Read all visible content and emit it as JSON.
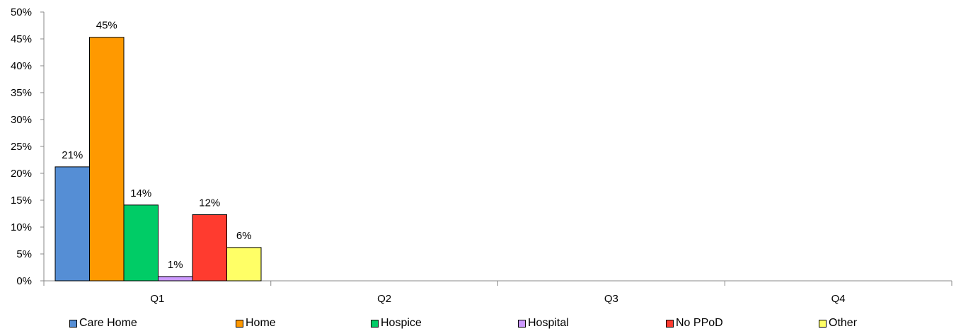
{
  "chart_data": {
    "type": "bar",
    "categories": [
      "Q1",
      "Q2",
      "Q3",
      "Q4"
    ],
    "series": [
      {
        "name": "Care Home",
        "color": "#558ED5",
        "values": [
          0.212,
          null,
          null,
          null
        ],
        "labels": [
          "21%",
          "",
          "",
          ""
        ]
      },
      {
        "name": "Home",
        "color": "#FF9900",
        "values": [
          0.453,
          null,
          null,
          null
        ],
        "labels": [
          "45%",
          "",
          "",
          ""
        ]
      },
      {
        "name": "Hospice",
        "color": "#00CC66",
        "values": [
          0.141,
          null,
          null,
          null
        ],
        "labels": [
          "14%",
          "",
          "",
          ""
        ]
      },
      {
        "name": "Hospital",
        "color": "#CC99FF",
        "values": [
          0.008,
          null,
          null,
          null
        ],
        "labels": [
          "1%",
          "",
          "",
          ""
        ]
      },
      {
        "name": "No PPoD",
        "color": "#FF3B2F",
        "values": [
          0.123,
          null,
          null,
          null
        ],
        "labels": [
          "12%",
          "",
          "",
          ""
        ]
      },
      {
        "name": "Other",
        "color": "#FFFF66",
        "values": [
          0.062,
          null,
          null,
          null
        ],
        "labels": [
          "6%",
          "",
          "",
          ""
        ]
      }
    ],
    "ylim": [
      0,
      0.5
    ],
    "yticks": [
      "0%",
      "5%",
      "10%",
      "15%",
      "20%",
      "25%",
      "30%",
      "35%",
      "40%",
      "45%",
      "50%"
    ],
    "grid": false,
    "legend_position": "bottom"
  }
}
